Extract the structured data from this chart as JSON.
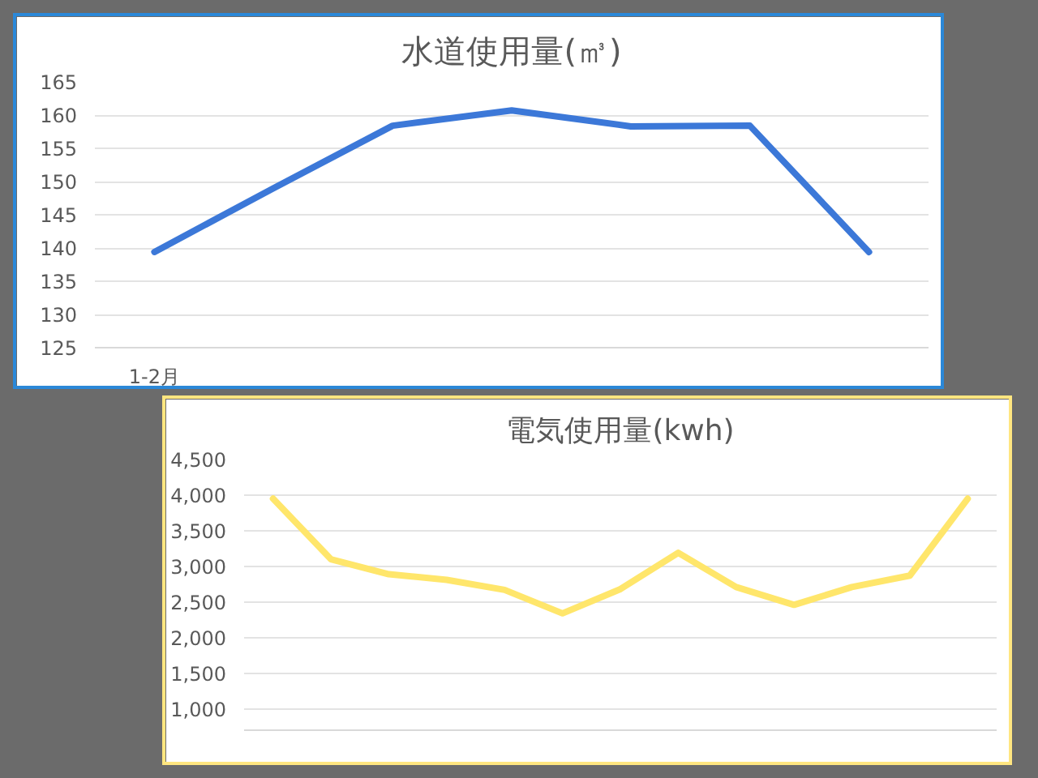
{
  "chart_data": [
    {
      "type": "line",
      "title": "水道使用量(㎥)",
      "categories": [
        "1-2月",
        null,
        null,
        null,
        null,
        null,
        null
      ],
      "series": [
        {
          "color": "#3c78d8",
          "values": [
            139.4,
            149,
            158.4,
            160.7,
            158.3,
            158.4,
            139.4
          ]
        }
      ],
      "ylim": [
        125,
        165
      ],
      "yticks": [
        125,
        130,
        135,
        140,
        145,
        150,
        155,
        160,
        165
      ],
      "grid": "y"
    },
    {
      "type": "line",
      "title": "電気使用量(kwh)",
      "categories": [
        null,
        null,
        null,
        null,
        null,
        null,
        null,
        null,
        null,
        null,
        null,
        null,
        null
      ],
      "series": [
        {
          "color": "#ffe66b",
          "values": [
            3950,
            3100,
            2890,
            2810,
            2670,
            2340,
            2680,
            3190,
            2710,
            2460,
            2710,
            2870,
            3950
          ]
        }
      ],
      "ylim": [
        700,
        4500
      ],
      "yticks": [
        {
          "value": 1000,
          "label": "1,000"
        },
        {
          "value": 1500,
          "label": "1,500"
        },
        {
          "value": 2000,
          "label": "2,000"
        },
        {
          "value": 2500,
          "label": "2,500"
        },
        {
          "value": 3000,
          "label": "3,000"
        },
        {
          "value": 3500,
          "label": "3,500"
        },
        {
          "value": 4000,
          "label": "4,000"
        },
        {
          "value": 4500,
          "label": "4,500"
        }
      ],
      "grid": "y",
      "tick_labels": "y"
    }
  ]
}
